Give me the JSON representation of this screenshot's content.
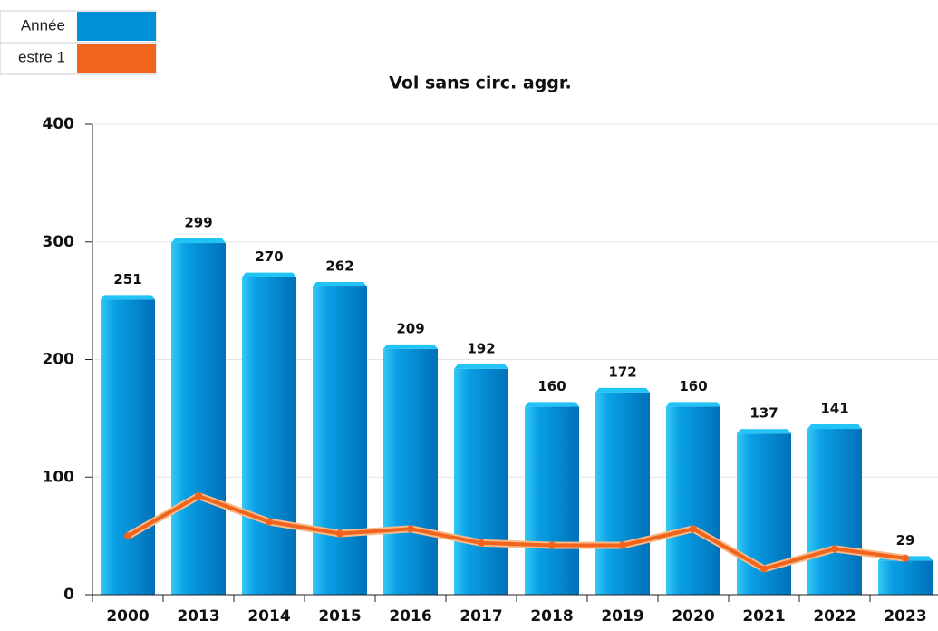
{
  "chart_data": {
    "type": "bar",
    "title": "Vol sans circ. aggr.",
    "categories": [
      "2000",
      "2013",
      "2014",
      "2015",
      "2016",
      "2017",
      "2018",
      "2019",
      "2020",
      "2021",
      "2022",
      "2023"
    ],
    "series": [
      {
        "name": "Année",
        "color": "#0090d8",
        "type": "bar",
        "values": [
          251,
          299,
          270,
          262,
          209,
          192,
          160,
          172,
          160,
          137,
          141,
          29
        ]
      },
      {
        "name": "estre 1",
        "color": "#f0641e",
        "type": "line",
        "values": [
          50,
          84,
          62,
          52,
          56,
          44,
          42,
          42,
          56,
          22,
          39,
          31
        ]
      }
    ],
    "ylim": [
      0,
      400
    ],
    "yticks": [
      0,
      100,
      200,
      300,
      400
    ],
    "grid": true
  }
}
